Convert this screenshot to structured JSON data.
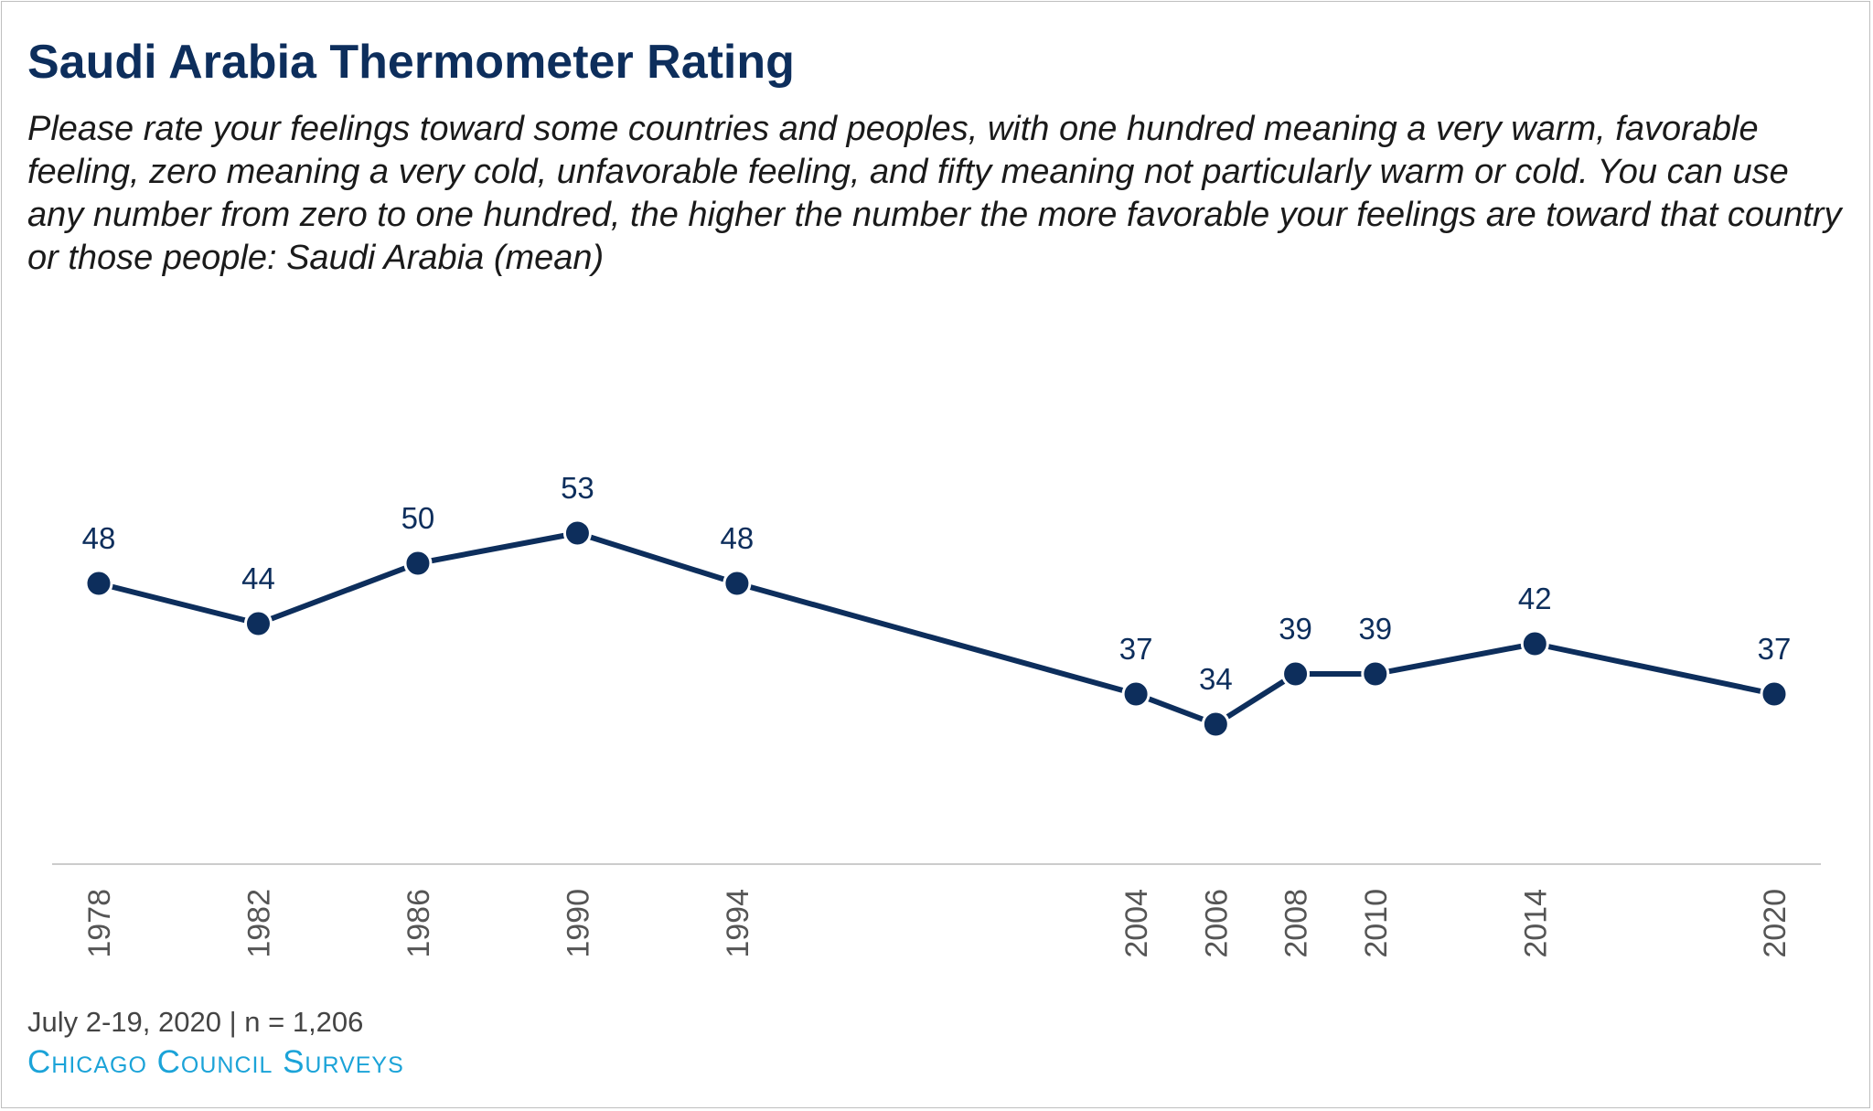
{
  "title": "Saudi Arabia Thermometer Rating",
  "subtitle": "Please rate your feelings toward some countries and peoples, with one hundred meaning a very warm, favorable feeling, zero meaning a very cold, unfavorable feeling, and fifty meaning not particularly warm or cold.  You can use any number from zero to one hundred, the higher the number the more favorable your feelings are toward that country or those people: Saudi Arabia (mean)",
  "footnote": "July 2-19, 2020 | n = 1,206",
  "source": "Chicago Council Surveys",
  "colors": {
    "series": "#0d2e5c",
    "axis": "#cccccc",
    "tick_label": "#555555",
    "source": "#1ba3d8"
  },
  "chart_data": {
    "type": "line",
    "title": "Saudi Arabia Thermometer Rating",
    "xlabel": "",
    "ylabel": "",
    "x": [
      "1978",
      "1982",
      "1986",
      "1990",
      "1994",
      "2004",
      "2006",
      "2008",
      "2010",
      "2014",
      "2020"
    ],
    "series": [
      {
        "values": [
          48,
          44,
          50,
          53,
          48,
          37,
          34,
          39,
          39,
          42,
          37
        ]
      }
    ],
    "data_labels": true,
    "grid": false,
    "legend": "none"
  }
}
